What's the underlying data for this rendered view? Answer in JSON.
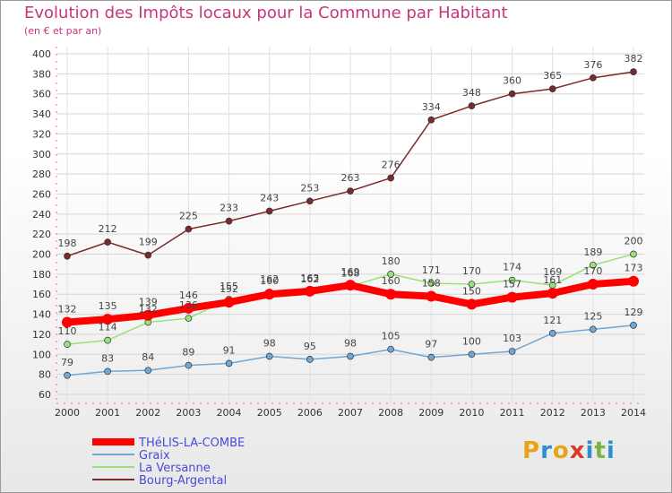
{
  "header": {
    "title": "Evolution des Impôts locaux pour la Commune par Habitant",
    "subtitle": "(en € et par an)"
  },
  "logo": {
    "text": "Proxiti",
    "letters": [
      "P",
      "r",
      "o",
      "x",
      "i",
      "t",
      "i"
    ]
  },
  "chart_data": {
    "type": "line",
    "title": "Evolution des Impôts locaux pour la Commune par Habitant",
    "subtitle": "(en € et par an)",
    "x": [
      2000,
      2001,
      2002,
      2003,
      2004,
      2005,
      2006,
      2007,
      2008,
      2009,
      2010,
      2011,
      2012,
      2013,
      2014
    ],
    "ylim": [
      60,
      400
    ],
    "yticks": [
      60,
      80,
      100,
      120,
      140,
      160,
      180,
      200,
      220,
      240,
      260,
      280,
      300,
      320,
      340,
      360,
      380,
      400
    ],
    "grid": true,
    "legend_position": "bottom-left",
    "series": [
      {
        "name": "Bourg-Argental",
        "color": "#7a2a2a",
        "values": [
          198,
          212,
          199,
          225,
          233,
          243,
          253,
          263,
          276,
          334,
          348,
          360,
          365,
          376,
          382
        ]
      },
      {
        "name": "La Versanne",
        "color": "#99e07a",
        "values": [
          110,
          114,
          132,
          136,
          155,
          162,
          162,
          168,
          180,
          171,
          170,
          174,
          169,
          189,
          200
        ]
      },
      {
        "name": "Graix",
        "color": "#6fa8d6",
        "values": [
          79,
          83,
          84,
          89,
          91,
          98,
          95,
          98,
          105,
          97,
          100,
          103,
          121,
          125,
          129
        ]
      },
      {
        "name": "THéLIS-LA-COMBE",
        "color": "#ff0000",
        "values": [
          132,
          135,
          139,
          146,
          152,
          160,
          163,
          169,
          160,
          158,
          150,
          157,
          161,
          170,
          173
        ]
      }
    ]
  }
}
